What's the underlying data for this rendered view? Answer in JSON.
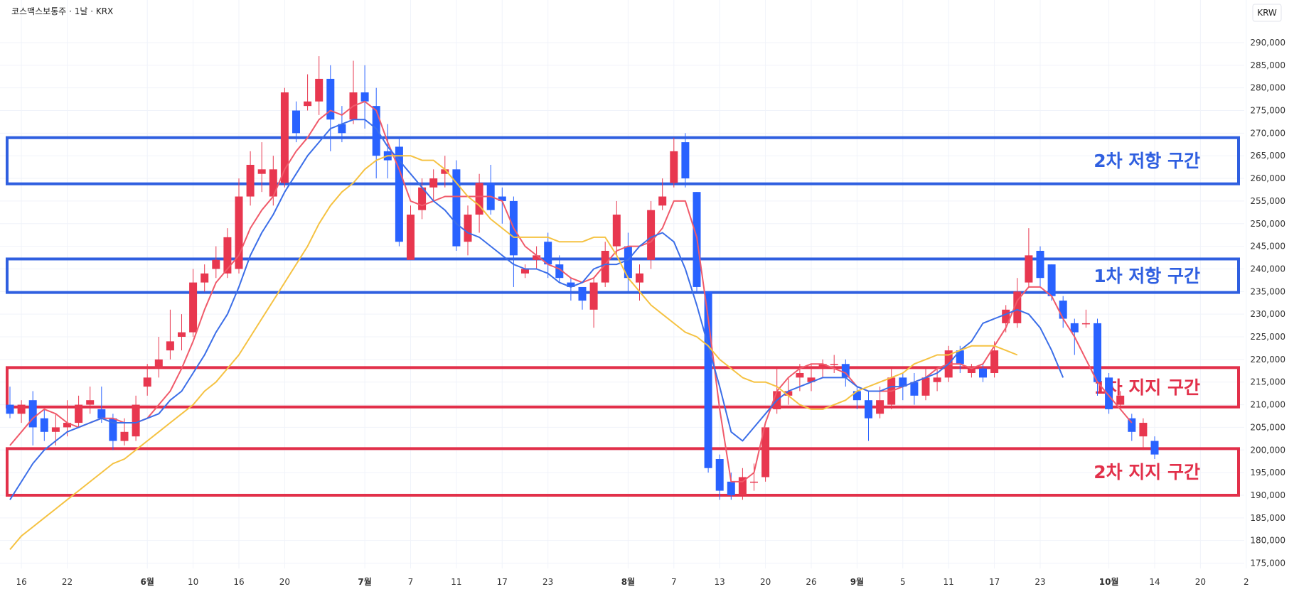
{
  "header": {
    "title": "코스맥스보통주 · 1날 · KRX",
    "currency": "KRW"
  },
  "colors": {
    "up": "#e8374f",
    "down": "#2962ff",
    "ma_short": "#f05a6a",
    "ma_mid": "#3b6ee8",
    "ma_long": "#f5c242",
    "resistance": "#2f5fe0",
    "support": "#e2304a"
  },
  "chart_data": {
    "type": "candlestick",
    "ylim": [
      171000,
      293000
    ],
    "y_ticks": [
      175000,
      180000,
      185000,
      190000,
      195000,
      200000,
      205000,
      210000,
      215000,
      220000,
      225000,
      230000,
      235000,
      240000,
      245000,
      250000,
      255000,
      260000,
      265000,
      270000,
      275000,
      280000,
      285000,
      290000
    ],
    "y_tick_labels": [
      "175,000",
      "180,000",
      "185,000",
      "190,000",
      "195,000",
      "200,000",
      "205,000",
      "210,000",
      "215,000",
      "220,000",
      "225,000",
      "230,000",
      "235,000",
      "240,000",
      "245,000",
      "250,000",
      "255,000",
      "260,000",
      "265,000",
      "270,000",
      "275,000",
      "280,000",
      "285,000",
      "290,000"
    ],
    "x_ticks": [
      {
        "i": 1,
        "label": "16",
        "month": false
      },
      {
        "i": 5,
        "label": "22",
        "month": false
      },
      {
        "i": 12,
        "label": "6월",
        "month": true
      },
      {
        "i": 16,
        "label": "10",
        "month": false
      },
      {
        "i": 20,
        "label": "16",
        "month": false
      },
      {
        "i": 24,
        "label": "20",
        "month": false
      },
      {
        "i": 31,
        "label": "7월",
        "month": true
      },
      {
        "i": 35,
        "label": "7",
        "month": false
      },
      {
        "i": 39,
        "label": "11",
        "month": false
      },
      {
        "i": 43,
        "label": "17",
        "month": false
      },
      {
        "i": 47,
        "label": "23",
        "month": false
      },
      {
        "i": 54,
        "label": "8월",
        "month": true
      },
      {
        "i": 58,
        "label": "7",
        "month": false
      },
      {
        "i": 62,
        "label": "13",
        "month": false
      },
      {
        "i": 66,
        "label": "20",
        "month": false
      },
      {
        "i": 70,
        "label": "26",
        "month": false
      },
      {
        "i": 74,
        "label": "9월",
        "month": true
      },
      {
        "i": 78,
        "label": "5",
        "month": false
      },
      {
        "i": 82,
        "label": "11",
        "month": false
      },
      {
        "i": 86,
        "label": "17",
        "month": false
      },
      {
        "i": 90,
        "label": "23",
        "month": false
      },
      {
        "i": 96,
        "label": "10월",
        "month": true
      },
      {
        "i": 100,
        "label": "14",
        "month": false
      },
      {
        "i": 104,
        "label": "20",
        "month": false
      },
      {
        "i": 108,
        "label": "2",
        "month": false
      }
    ],
    "candles": [
      [
        210000,
        208000,
        214000,
        207000
      ],
      [
        208000,
        210000,
        211000,
        206000
      ],
      [
        211000,
        205000,
        213000,
        201000
      ],
      [
        207000,
        204000,
        209000,
        202000
      ],
      [
        204000,
        205000,
        208000,
        201000
      ],
      [
        205000,
        206000,
        211000,
        203000
      ],
      [
        206000,
        210000,
        212000,
        205000
      ],
      [
        210000,
        211000,
        214000,
        208000
      ],
      [
        209000,
        207000,
        214000,
        206000
      ],
      [
        207000,
        202000,
        208000,
        200000
      ],
      [
        202000,
        204000,
        207000,
        201000
      ],
      [
        203000,
        210000,
        212000,
        202000
      ],
      [
        214000,
        216000,
        219000,
        212000
      ],
      [
        218000,
        220000,
        225000,
        216000
      ],
      [
        222000,
        224000,
        231000,
        220000
      ],
      [
        225000,
        226000,
        230000,
        222000
      ],
      [
        226000,
        237000,
        240000,
        225000
      ],
      [
        237000,
        239000,
        241000,
        235000
      ],
      [
        240000,
        242000,
        245000,
        238000
      ],
      [
        239000,
        247000,
        249000,
        238000
      ],
      [
        240000,
        256000,
        260000,
        239000
      ],
      [
        256000,
        263000,
        266000,
        254000
      ],
      [
        261000,
        262000,
        268000,
        257000
      ],
      [
        256000,
        262000,
        265000,
        254000
      ],
      [
        259000,
        279000,
        280000,
        258000
      ],
      [
        275000,
        270000,
        277000,
        268000
      ],
      [
        276000,
        277000,
        283000,
        275000
      ],
      [
        277000,
        282000,
        287000,
        274000
      ],
      [
        282000,
        273000,
        285000,
        266000
      ],
      [
        272000,
        270000,
        276000,
        268000
      ],
      [
        273000,
        279000,
        286000,
        272000
      ],
      [
        279000,
        277000,
        285000,
        271000
      ],
      [
        276000,
        265000,
        280000,
        260000
      ],
      [
        266000,
        264000,
        272000,
        260000
      ],
      [
        267000,
        246000,
        269000,
        245000
      ],
      [
        242000,
        252000,
        254000,
        242000
      ],
      [
        253000,
        258000,
        260000,
        251000
      ],
      [
        258000,
        260000,
        262000,
        255000
      ],
      [
        261000,
        262000,
        265000,
        258000
      ],
      [
        262000,
        245000,
        264000,
        244000
      ],
      [
        246000,
        252000,
        254000,
        243000
      ],
      [
        252000,
        259000,
        261000,
        248000
      ],
      [
        259000,
        253000,
        263000,
        252000
      ],
      [
        256000,
        255000,
        258000,
        250000
      ],
      [
        255000,
        243000,
        256000,
        236000
      ],
      [
        239000,
        240000,
        241000,
        238000
      ],
      [
        242000,
        243000,
        245000,
        240000
      ],
      [
        246000,
        241000,
        248000,
        238000
      ],
      [
        241000,
        238000,
        243000,
        237000
      ],
      [
        237000,
        236000,
        238000,
        233000
      ],
      [
        236000,
        233000,
        236000,
        231000
      ],
      [
        231000,
        237000,
        238000,
        227000
      ],
      [
        237000,
        244000,
        246000,
        236000
      ],
      [
        245000,
        252000,
        255000,
        243000
      ],
      [
        245000,
        238000,
        248000,
        235000
      ],
      [
        237000,
        239000,
        241000,
        233000
      ],
      [
        242000,
        253000,
        255000,
        240000
      ],
      [
        254000,
        256000,
        260000,
        253000
      ],
      [
        259000,
        266000,
        269000,
        258000
      ],
      [
        268000,
        260000,
        270000,
        258000
      ],
      [
        257000,
        236000,
        257000,
        235000
      ],
      [
        235000,
        196000,
        235000,
        195000
      ],
      [
        198000,
        191000,
        199000,
        189000
      ],
      [
        193000,
        190000,
        195000,
        189000
      ],
      [
        190000,
        194000,
        196000,
        189000
      ],
      [
        193000,
        193000,
        197000,
        191000
      ],
      [
        194000,
        205000,
        205000,
        193000
      ],
      [
        209000,
        213000,
        218000,
        208000
      ],
      [
        212000,
        213000,
        216000,
        210000
      ],
      [
        216000,
        217000,
        219000,
        213000
      ],
      [
        215000,
        216000,
        219000,
        213000
      ],
      [
        218000,
        219000,
        220000,
        216000
      ],
      [
        219000,
        219000,
        221000,
        217000
      ],
      [
        219000,
        216000,
        220000,
        214000
      ],
      [
        213000,
        211000,
        214000,
        209000
      ],
      [
        211000,
        207000,
        213000,
        202000
      ],
      [
        208000,
        211000,
        214000,
        207000
      ],
      [
        210000,
        216000,
        218000,
        209000
      ],
      [
        216000,
        214000,
        217000,
        211000
      ],
      [
        215000,
        212000,
        217000,
        210000
      ],
      [
        212000,
        216000,
        218000,
        211000
      ],
      [
        215000,
        216000,
        218000,
        213000
      ],
      [
        216000,
        222000,
        223000,
        215000
      ],
      [
        222000,
        219000,
        223000,
        217000
      ],
      [
        217000,
        218000,
        219000,
        216000
      ],
      [
        218000,
        216000,
        219000,
        215000
      ],
      [
        217000,
        222000,
        224000,
        216000
      ],
      [
        228000,
        231000,
        232000,
        226000
      ],
      [
        228000,
        235000,
        238000,
        227000
      ],
      [
        237000,
        243000,
        249000,
        236000
      ],
      [
        244000,
        238000,
        245000,
        236000
      ],
      [
        241000,
        234000,
        241000,
        233000
      ],
      [
        233000,
        229000,
        234000,
        227000
      ],
      [
        228000,
        226000,
        229000,
        221000
      ],
      [
        228000,
        228000,
        231000,
        227000
      ],
      [
        228000,
        215000,
        229000,
        212000
      ],
      [
        216000,
        209000,
        217000,
        208000
      ],
      [
        210000,
        212000,
        213000,
        209000
      ],
      [
        207000,
        204000,
        208000,
        202000
      ],
      [
        203000,
        206000,
        207000,
        200000
      ],
      [
        202000,
        199000,
        203000,
        198000
      ]
    ],
    "ma": {
      "short": {
        "start": 0,
        "values": [
          201000,
          204000,
          207000,
          209000,
          208000,
          206000,
          205000,
          206000,
          207000,
          207000,
          206000,
          206000,
          207000,
          210000,
          213000,
          218000,
          224000,
          231000,
          237000,
          240000,
          243000,
          249000,
          253000,
          256000,
          262000,
          266000,
          269000,
          273000,
          275000,
          274000,
          276000,
          277000,
          275000,
          268000,
          262000,
          255000,
          254000,
          255000,
          256000,
          256000,
          256000,
          256000,
          256000,
          255000,
          249000,
          245000,
          243000,
          241000,
          240000,
          238000,
          237000,
          238000,
          241000,
          244000,
          245000,
          245000,
          246000,
          249000,
          255000,
          255000,
          247000,
          229000,
          209000,
          193000,
          193000,
          195000,
          206000,
          213000,
          216000,
          218000,
          219000,
          219000,
          218000,
          217000,
          214000,
          213000,
          213000,
          213000,
          214000,
          215000,
          216000,
          218000,
          219000,
          219000,
          218000,
          219000,
          223000,
          227000,
          233000,
          236000,
          236000,
          234000,
          229000,
          225000,
          220000,
          215000,
          212000,
          209000,
          206000
        ]
      },
      "mid": {
        "start": 0,
        "values": [
          189000,
          193000,
          197000,
          200000,
          202000,
          204000,
          205000,
          206000,
          207000,
          206000,
          206000,
          206000,
          207000,
          208000,
          211000,
          213000,
          217000,
          221000,
          226000,
          230000,
          236000,
          243000,
          248000,
          252000,
          257000,
          261000,
          265000,
          268000,
          271000,
          272000,
          273000,
          273000,
          271000,
          267000,
          264000,
          261000,
          258000,
          255000,
          253000,
          250000,
          248000,
          247000,
          245000,
          243000,
          241000,
          240000,
          240000,
          239000,
          237000,
          236000,
          237000,
          240000,
          241000,
          241000,
          242000,
          245000,
          247000,
          248000,
          246000,
          240000,
          232000,
          223000,
          214000,
          204000,
          202000,
          205000,
          208000,
          211000,
          213000,
          214000,
          215000,
          216000,
          216000,
          216000,
          214000,
          213000,
          213000,
          214000,
          214000,
          215000,
          216000,
          217000,
          219000,
          222000,
          224000,
          228000,
          229000,
          230000,
          231000,
          230000,
          227000,
          222000,
          216000
        ]
      },
      "long": {
        "start": 0,
        "values": [
          178000,
          181000,
          183000,
          185000,
          187000,
          189000,
          191000,
          193000,
          195000,
          197000,
          198000,
          200000,
          202000,
          204000,
          206000,
          208000,
          210000,
          213000,
          215000,
          218000,
          221000,
          225000,
          229000,
          233000,
          237000,
          241000,
          245000,
          250000,
          254000,
          257000,
          259000,
          262000,
          264000,
          265000,
          265000,
          265000,
          264000,
          264000,
          262000,
          259000,
          256000,
          254000,
          251000,
          249000,
          247000,
          247000,
          247000,
          247000,
          246000,
          246000,
          246000,
          247000,
          247000,
          243000,
          238000,
          235000,
          232000,
          230000,
          228000,
          226000,
          225000,
          223000,
          220000,
          218000,
          216000,
          215000,
          215000,
          214000,
          212000,
          210000,
          209000,
          209000,
          210000,
          211000,
          213000,
          214000,
          215000,
          216000,
          217000,
          219000,
          220000,
          221000,
          221000,
          222000,
          223000,
          223000,
          223000,
          222000,
          221000
        ]
      }
    },
    "zones": [
      {
        "kind": "resistance",
        "label": "2차 저항 구간",
        "low": 258800,
        "high": 269000
      },
      {
        "kind": "resistance",
        "label": "1차 저항 구간",
        "low": 234800,
        "high": 242200
      },
      {
        "kind": "support",
        "label": "1차 지지 구간",
        "low": 209500,
        "high": 218200
      },
      {
        "kind": "support",
        "label": "2차 지지 구간",
        "low": 190000,
        "high": 200300
      }
    ]
  }
}
